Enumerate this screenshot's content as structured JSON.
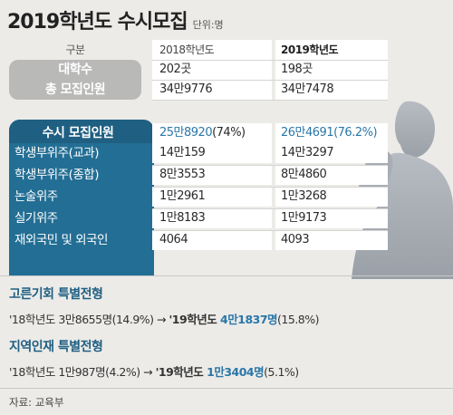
{
  "header": {
    "title": "2019학년도 수시모집",
    "unit": "단위:명"
  },
  "table": {
    "col_label": "구분",
    "col_2018": "2018학년도",
    "col_2019": "2019학년도",
    "rows": [
      {
        "label": "대학수",
        "v2018": "202곳",
        "v2019": "198곳"
      },
      {
        "label": "총 모집인원",
        "v2018": "34만9776",
        "v2019": "34만7478"
      },
      {
        "label": "수시 모집인원",
        "v2018_value": "25만8920",
        "v2018_pct": "(74%)",
        "v2019_value": "26만4691",
        "v2019_pct": "(76.2%)"
      },
      {
        "label": "학생부위주(교과)",
        "v2018": "14만159",
        "v2019": "14만3297"
      },
      {
        "label": "학생부위주(종합)",
        "v2018": "8만3553",
        "v2019": "8만4860"
      },
      {
        "label": "논술위주",
        "v2018": "1만2961",
        "v2019": "1만3268"
      },
      {
        "label": "실기위주",
        "v2018": "1만8183",
        "v2019": "1만9173"
      },
      {
        "label": "재외국민 및 외국인",
        "v2018": "4064",
        "v2019": "4093"
      }
    ]
  },
  "section1": {
    "title": "고른기회 특별전형",
    "prefix": "'18학년도 3만8655명(14.9%) → ",
    "year2019": "'19학년도 ",
    "value": "4만1837명",
    "pct": "(15.8%)"
  },
  "section2": {
    "title": "지역인재 특별전형",
    "prefix": "'18학년도 1만987명(4.2%) → ",
    "year2019": "'19학년도 ",
    "value": "1만3404명",
    "pct": "(5.1%)"
  },
  "source": "자료: 교육부",
  "colors": {
    "accent_blue": "#236e94",
    "highlight_blue": "#2a77a8",
    "gray": "#b9b9b8",
    "background": "#ecebe8"
  },
  "decoration": {
    "silhouette": "student-silhouette-icon"
  }
}
